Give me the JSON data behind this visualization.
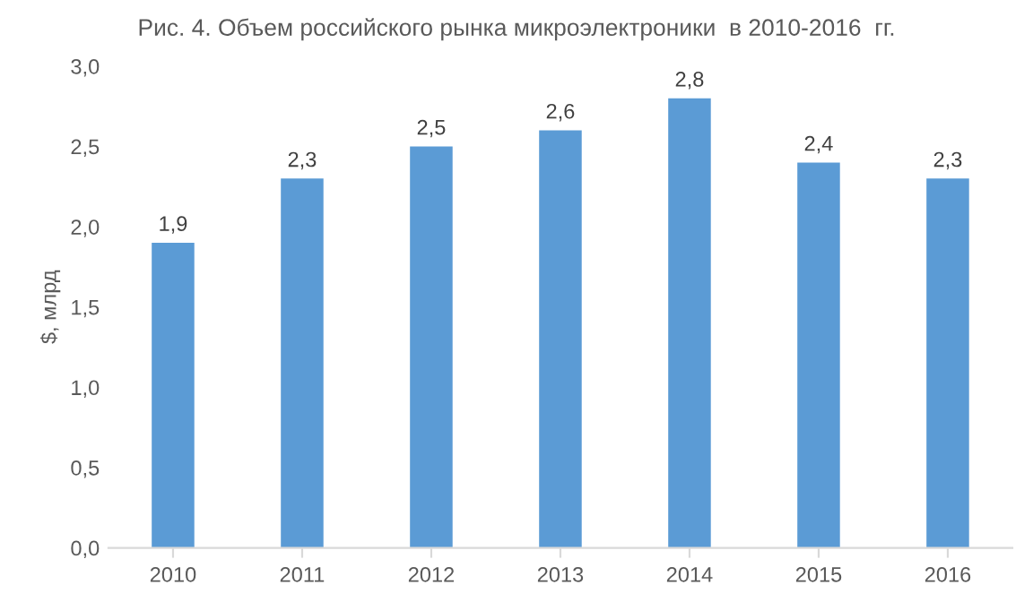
{
  "chart_data": {
    "type": "bar",
    "title": "Рис. 4. Объем российского рынка микроэлектроники  в 2010-2016  гг.",
    "ylabel": "$, млрд",
    "categories": [
      "2010",
      "2011",
      "2012",
      "2013",
      "2014",
      "2015",
      "2016"
    ],
    "values": [
      1.9,
      2.3,
      2.5,
      2.6,
      2.8,
      2.4,
      2.3
    ],
    "value_labels": [
      "1,9",
      "2,3",
      "2,5",
      "2,6",
      "2,8",
      "2,4",
      "2,3"
    ],
    "color": "#5b9bd5",
    "ylim": [
      0,
      3
    ],
    "yticks": [
      {
        "value": 0,
        "label": "0,0"
      },
      {
        "value": 0.5,
        "label": "0,5"
      },
      {
        "value": 1,
        "label": "1,0"
      },
      {
        "value": 1.5,
        "label": "1,5"
      },
      {
        "value": 2,
        "label": "2,0"
      },
      {
        "value": 2.5,
        "label": "2,5"
      },
      {
        "value": 3,
        "label": "3,0"
      }
    ]
  }
}
